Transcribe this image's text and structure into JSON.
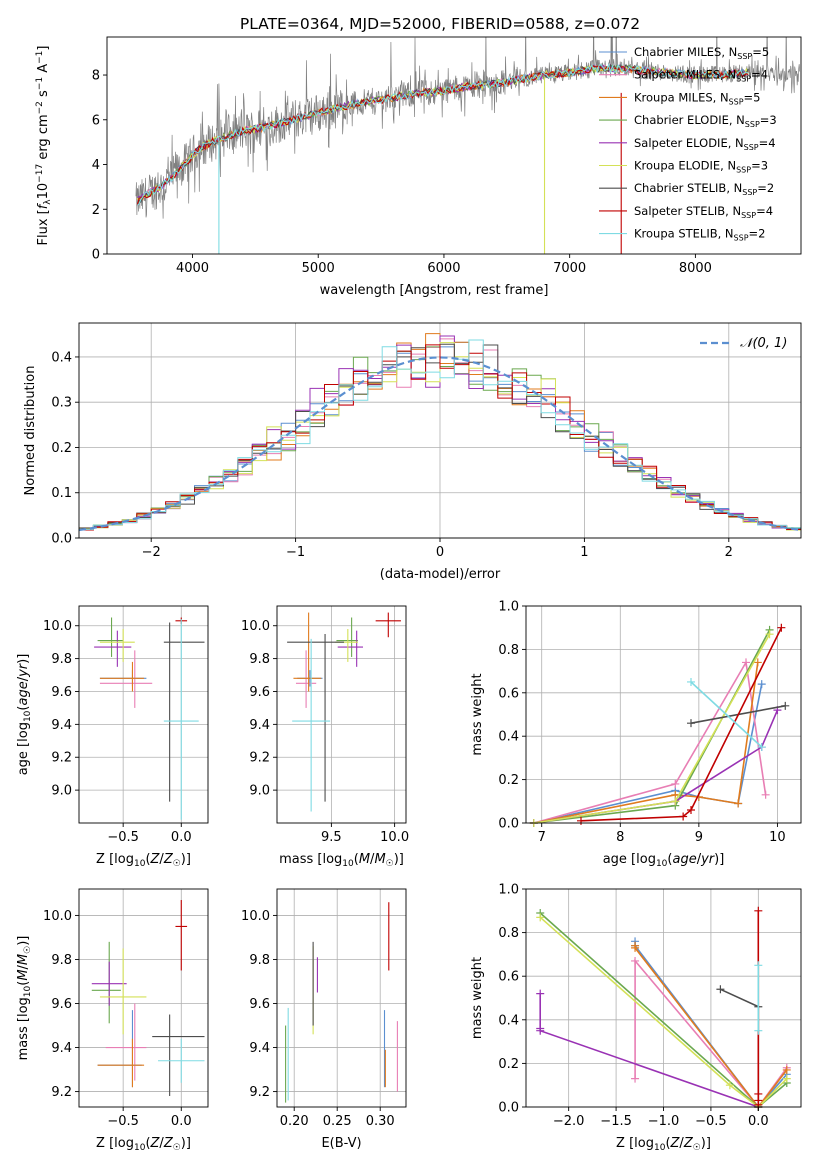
{
  "title": "PLATE=0364, MJD=52000, FIBERID=0588, z=0.072",
  "colors": {
    "chabrier_miles": "#5b8fd0",
    "salpeter_miles": "#e87eb4",
    "kroupa_miles": "#e07b1e",
    "chabrier_elodie": "#6aa84f",
    "salpeter_elodie": "#9932b4",
    "kroupa_elodie": "#d4e157",
    "chabrier_stelib": "#4d4d4d",
    "salpeter_stelib": "#c00000",
    "kroupa_stelib": "#7fdbe3",
    "data": "#808080",
    "normal": "#5b8fd0"
  },
  "chart_data": [
    {
      "id": "spectrum",
      "type": "line",
      "title": "PLATE=0364, MJD=52000, FIBERID=0588, z=0.072",
      "xlabel": "wavelength [Angstrom, rest frame]",
      "ylabel": "Flux [f_λ 10^-17 erg cm^-2 s^-1 A^-1]",
      "xlim": [
        3320,
        8840
      ],
      "ylim": [
        0,
        9.7
      ],
      "xticks": [
        "4000",
        "5000",
        "6000",
        "7000",
        "8000"
      ],
      "yticks": [
        "0",
        "2",
        "4",
        "6",
        "8"
      ],
      "grid": false,
      "legend": "right",
      "continuum": {
        "x": [
          3550,
          3650,
          3750,
          3850,
          3950,
          4050,
          4150,
          4250,
          4400,
          4600,
          4800,
          5000,
          5200,
          5400,
          5600,
          5800,
          6000,
          6200,
          6400,
          6600,
          6800,
          7000,
          7200,
          7400,
          7600,
          7800,
          8000,
          8200,
          8400,
          8600,
          8800
        ],
        "y": [
          2.3,
          2.7,
          3.0,
          3.5,
          4.1,
          4.7,
          5.0,
          5.2,
          5.5,
          5.7,
          6.0,
          6.3,
          6.6,
          6.8,
          7.0,
          7.2,
          7.3,
          7.5,
          7.6,
          7.8,
          8.0,
          8.1,
          8.3,
          8.3,
          8.2,
          8.1,
          8.0,
          8.0,
          8.1,
          8.1,
          8.0
        ]
      },
      "series": [
        {
          "name": "Chabrier MILES, N_SSP=5",
          "label": "Chabrier MILES, N",
          "sub": "SSP",
          "tail": "=5"
        },
        {
          "name": "Salpeter MILES, N_SSP=4",
          "label": "Salpeter MILES, N",
          "sub": "SSP",
          "tail": "=4"
        },
        {
          "name": "Kroupa MILES, N_SSP=5",
          "label": "Kroupa MILES, N",
          "sub": "SSP",
          "tail": "=5"
        },
        {
          "name": "Chabrier ELODIE, N_SSP=3",
          "label": "Chabrier ELODIE, N",
          "sub": "SSP",
          "tail": "=3"
        },
        {
          "name": "Salpeter ELODIE, N_SSP=4",
          "label": "Salpeter ELODIE, N",
          "sub": "SSP",
          "tail": "=4"
        },
        {
          "name": "Kroupa ELODIE, N_SSP=3",
          "label": "Kroupa ELODIE, N",
          "sub": "SSP",
          "tail": "=3"
        },
        {
          "name": "Chabrier STELIB, N_SSP=2",
          "label": "Chabrier STELIB, N",
          "sub": "SSP",
          "tail": "=2"
        },
        {
          "name": "Salpeter STELIB, N_SSP=4",
          "label": "Salpeter STELIB, N",
          "sub": "SSP",
          "tail": "=4"
        },
        {
          "name": "Kroupa STELIB, N_SSP=2",
          "label": "Kroupa STELIB, N",
          "sub": "SSP",
          "tail": "=2"
        }
      ]
    },
    {
      "id": "residuals",
      "type": "line",
      "xlabel": "(data-model)/error",
      "ylabel": "Normed distribution",
      "xlim": [
        -2.5,
        2.5
      ],
      "ylim": [
        0,
        0.475
      ],
      "xticks": [
        "−2",
        "−1",
        "0",
        "1",
        "2"
      ],
      "yticks": [
        "0.0",
        "0.1",
        "0.2",
        "0.3",
        "0.4"
      ],
      "grid": true,
      "legend": "top-right",
      "legend_label": "𝒩(0, 1)",
      "bin_width": 0.1
    },
    {
      "id": "age_vs_Z",
      "type": "scatter",
      "xlabel": "Z [log10(Z/Z☉)]",
      "ylabel": "age [log10(age/yr)]",
      "xlim": [
        -0.88,
        0.23
      ],
      "ylim": [
        8.8,
        10.12
      ],
      "xticks": [
        "−0.5",
        "0.0"
      ],
      "yticks": [
        "9.0",
        "9.2",
        "9.4",
        "9.6",
        "9.8",
        "10.0"
      ],
      "grid": true,
      "points": [
        {
          "model": "chabrier_miles",
          "x": -0.42,
          "y": 9.68,
          "xerr": [
            0.28,
            0.12
          ],
          "yerr": [
            0.05,
            0.05
          ]
        },
        {
          "model": "salpeter_miles",
          "x": -0.4,
          "y": 9.65,
          "xerr": [
            0.3,
            0.15
          ],
          "yerr": [
            0.15,
            0.2
          ]
        },
        {
          "model": "kroupa_miles",
          "x": -0.42,
          "y": 9.68,
          "xerr": [
            0.28,
            0.1
          ],
          "yerr": [
            0.08,
            0.1
          ]
        },
        {
          "model": "chabrier_elodie",
          "x": -0.6,
          "y": 9.91,
          "xerr": [
            0.12,
            0.1
          ],
          "yerr": [
            0.1,
            0.14
          ]
        },
        {
          "model": "salpeter_elodie",
          "x": -0.55,
          "y": 9.87,
          "xerr": [
            0.2,
            0.12
          ],
          "yerr": [
            0.12,
            0.1
          ]
        },
        {
          "model": "kroupa_elodie",
          "x": -0.5,
          "y": 9.9,
          "xerr": [
            0.2,
            0.1
          ],
          "yerr": [
            0.12,
            0.08
          ]
        },
        {
          "model": "chabrier_stelib",
          "x": -0.1,
          "y": 9.9,
          "xerr": [
            0.05,
            0.3
          ],
          "yerr": [
            0.97,
            0.12
          ]
        },
        {
          "model": "salpeter_stelib",
          "x": 0.0,
          "y": 10.03,
          "xerr": [
            0.05,
            0.05
          ],
          "yerr": [
            0.02,
            0.02
          ]
        },
        {
          "model": "kroupa_stelib",
          "x": 0.0,
          "y": 9.42,
          "xerr": [
            0.15,
            0.15
          ],
          "yerr": [
            0.6,
            0.62
          ]
        }
      ]
    },
    {
      "id": "age_vs_mass",
      "type": "scatter",
      "xlabel": "mass [log10(M/M☉)]",
      "ylabel": "",
      "xlim": [
        9.07,
        10.09
      ],
      "ylim": [
        8.8,
        10.12
      ],
      "xticks": [
        "9.5",
        "10.0"
      ],
      "yticks": [
        "9.0",
        "9.2",
        "9.4",
        "9.6",
        "9.8",
        "10.0"
      ],
      "grid": true,
      "points": [
        {
          "model": "chabrier_miles",
          "x": 9.33,
          "y": 9.68,
          "xerr": [
            0.1,
            0.1
          ],
          "yerr": [
            0.05,
            0.05
          ]
        },
        {
          "model": "salpeter_miles",
          "x": 9.3,
          "y": 9.65,
          "xerr": [
            0.08,
            0.08
          ],
          "yerr": [
            0.15,
            0.2
          ]
        },
        {
          "model": "kroupa_miles",
          "x": 9.32,
          "y": 9.68,
          "xerr": [
            0.12,
            0.1
          ],
          "yerr": [
            0.08,
            0.4
          ]
        },
        {
          "model": "chabrier_elodie",
          "x": 9.66,
          "y": 9.91,
          "xerr": [
            0.12,
            0.05
          ],
          "yerr": [
            0.1,
            0.14
          ]
        },
        {
          "model": "salpeter_elodie",
          "x": 9.7,
          "y": 9.87,
          "xerr": [
            0.15,
            0.05
          ],
          "yerr": [
            0.12,
            0.1
          ]
        },
        {
          "model": "kroupa_elodie",
          "x": 9.63,
          "y": 9.9,
          "xerr": [
            0.1,
            0.08
          ],
          "yerr": [
            0.12,
            0.08
          ]
        },
        {
          "model": "chabrier_stelib",
          "x": 9.45,
          "y": 9.9,
          "xerr": [
            0.3,
            0.15
          ],
          "yerr": [
            0.97,
            0.05
          ]
        },
        {
          "model": "salpeter_stelib",
          "x": 9.95,
          "y": 10.03,
          "xerr": [
            0.1,
            0.1
          ],
          "yerr": [
            0.1,
            0.05
          ]
        },
        {
          "model": "kroupa_stelib",
          "x": 9.34,
          "y": 9.42,
          "xerr": [
            0.15,
            0.15
          ],
          "yerr": [
            0.55,
            0.5
          ]
        }
      ]
    },
    {
      "id": "mass_weight_vs_age",
      "type": "line",
      "xlabel": "age [log10(age/yr)]",
      "ylabel": "mass weight",
      "xlim": [
        6.8,
        10.3
      ],
      "ylim": [
        0,
        1
      ],
      "xticks": [
        "7",
        "8",
        "9",
        "10"
      ],
      "yticks": [
        "0.0",
        "0.2",
        "0.4",
        "0.6",
        "0.8",
        "1.0"
      ],
      "grid": true,
      "series": [
        {
          "model": "chabrier_miles",
          "x": [
            6.9,
            8.7,
            9.0,
            9.5,
            9.8
          ],
          "y": [
            0.0,
            0.15,
            0.12,
            0.09,
            0.64
          ]
        },
        {
          "model": "salpeter_miles",
          "x": [
            6.9,
            8.7,
            9.6,
            9.85
          ],
          "y": [
            0.0,
            0.18,
            0.74,
            0.13
          ]
        },
        {
          "model": "kroupa_miles",
          "x": [
            6.9,
            8.7,
            9.0,
            9.5,
            9.75
          ],
          "y": [
            0.0,
            0.13,
            0.12,
            0.09,
            0.74
          ]
        },
        {
          "model": "chabrier_elodie",
          "x": [
            6.9,
            8.7,
            9.9
          ],
          "y": [
            0.0,
            0.08,
            0.89
          ]
        },
        {
          "model": "salpeter_elodie",
          "x": [
            6.9,
            8.7,
            9.8,
            10.0
          ],
          "y": [
            0.0,
            0.1,
            0.35,
            0.52
          ]
        },
        {
          "model": "kroupa_elodie",
          "x": [
            6.9,
            8.7,
            9.9
          ],
          "y": [
            0.0,
            0.1,
            0.87
          ]
        },
        {
          "model": "chabrier_stelib",
          "x": [
            8.9,
            10.1
          ],
          "y": [
            0.46,
            0.54
          ]
        },
        {
          "model": "salpeter_stelib",
          "x": [
            7.5,
            8.8,
            8.9,
            10.05
          ],
          "y": [
            0.01,
            0.03,
            0.06,
            0.9
          ]
        },
        {
          "model": "kroupa_stelib",
          "x": [
            8.9,
            9.8
          ],
          "y": [
            0.65,
            0.35
          ]
        }
      ]
    },
    {
      "id": "mass_vs_Z",
      "type": "scatter",
      "xlabel": "Z [log10(Z/Z☉)]",
      "ylabel": "mass [log10(M/M☉)]",
      "xlim": [
        -0.88,
        0.23
      ],
      "ylim": [
        9.13,
        10.12
      ],
      "xticks": [
        "−0.5",
        "0.0"
      ],
      "yticks": [
        "9.2",
        "9.4",
        "9.6",
        "9.8",
        "10.0"
      ],
      "grid": true,
      "points": [
        {
          "model": "chabrier_miles",
          "x": -0.42,
          "y": 9.32,
          "xerr": [
            0.3,
            0.08
          ],
          "yerr": [
            0.1,
            0.25
          ]
        },
        {
          "model": "salpeter_miles",
          "x": -0.4,
          "y": 9.4,
          "xerr": [
            0.25,
            0.1
          ],
          "yerr": [
            0.15,
            0.2
          ]
        },
        {
          "model": "kroupa_miles",
          "x": -0.42,
          "y": 9.32,
          "xerr": [
            0.3,
            0.1
          ],
          "yerr": [
            0.1,
            0.12
          ]
        },
        {
          "model": "chabrier_elodie",
          "x": -0.62,
          "y": 9.66,
          "xerr": [
            0.15,
            0.1
          ],
          "yerr": [
            0.15,
            0.22
          ]
        },
        {
          "model": "salpeter_elodie",
          "x": -0.62,
          "y": 9.69,
          "xerr": [
            0.15,
            0.15
          ],
          "yerr": [
            0.1,
            0.1
          ]
        },
        {
          "model": "kroupa_elodie",
          "x": -0.5,
          "y": 9.63,
          "xerr": [
            0.2,
            0.2
          ],
          "yerr": [
            0.17,
            0.22
          ]
        },
        {
          "model": "chabrier_stelib",
          "x": -0.1,
          "y": 9.45,
          "xerr": [
            0.15,
            0.3
          ],
          "yerr": [
            0.27,
            0.1
          ]
        },
        {
          "model": "salpeter_stelib",
          "x": 0.0,
          "y": 9.95,
          "xerr": [
            0.05,
            0.05
          ],
          "yerr": [
            0.2,
            0.12
          ]
        },
        {
          "model": "kroupa_stelib",
          "x": 0.0,
          "y": 9.34,
          "xerr": [
            0.2,
            0.2
          ],
          "yerr": [
            0.1,
            0.1
          ]
        }
      ]
    },
    {
      "id": "mass_vs_ebv",
      "type": "scatter",
      "xlabel": "E(B-V)",
      "ylabel": "",
      "xlim": [
        0.18,
        0.33
      ],
      "ylim": [
        9.13,
        10.12
      ],
      "xticks": [
        "0.20",
        "0.25",
        "0.30"
      ],
      "yticks": [
        "9.2",
        "9.4",
        "9.6",
        "9.8",
        "10.0"
      ],
      "grid": true,
      "points": [
        {
          "model": "chabrier_miles",
          "x": 0.305,
          "y": 9.32,
          "yerr": [
            0.1,
            0.25
          ]
        },
        {
          "model": "salpeter_miles",
          "x": 0.32,
          "y": 9.4,
          "yerr": [
            0.2,
            0.12
          ]
        },
        {
          "model": "kroupa_miles",
          "x": 0.306,
          "y": 9.32,
          "yerr": [
            0.1,
            0.07
          ]
        },
        {
          "model": "chabrier_elodie",
          "x": 0.19,
          "y": 9.35,
          "yerr": [
            0.2,
            0.15
          ]
        },
        {
          "model": "salpeter_elodie",
          "x": 0.227,
          "y": 9.73,
          "yerr": [
            0.08,
            0.08
          ]
        },
        {
          "model": "kroupa_elodie",
          "x": 0.222,
          "y": 9.66,
          "yerr": [
            0.2,
            0.2
          ]
        },
        {
          "model": "chabrier_stelib",
          "x": 0.222,
          "y": 9.7,
          "yerr": [
            0.2,
            0.18
          ]
        },
        {
          "model": "salpeter_stelib",
          "x": 0.31,
          "y": 9.91,
          "yerr": [
            0.16,
            0.15
          ]
        },
        {
          "model": "kroupa_stelib",
          "x": 0.193,
          "y": 9.38,
          "yerr": [
            0.22,
            0.2
          ]
        }
      ]
    },
    {
      "id": "mass_weight_vs_Z",
      "type": "line",
      "xlabel": "Z [log10(Z/Z☉)]",
      "ylabel": "mass weight",
      "xlim": [
        -2.45,
        0.45
      ],
      "ylim": [
        0,
        1
      ],
      "xticks": [
        "−2.0",
        "−1.5",
        "−1.0",
        "−0.5",
        "0.0"
      ],
      "yticks": [
        "0.0",
        "0.2",
        "0.4",
        "0.6",
        "0.8",
        "1.0"
      ],
      "grid": true,
      "series": [
        {
          "model": "chabrier_miles",
          "x": [
            -1.3,
            -1.3,
            0.0,
            0.3
          ],
          "y": [
            0.76,
            0.74,
            0.0,
            0.15
          ]
        },
        {
          "model": "salpeter_miles",
          "x": [
            -1.3,
            -1.3,
            0.0,
            0.3
          ],
          "y": [
            0.13,
            0.67,
            0.0,
            0.18
          ]
        },
        {
          "model": "kroupa_miles",
          "x": [
            -1.3,
            -1.3,
            0.0,
            0.3
          ],
          "y": [
            0.74,
            0.73,
            0.0,
            0.17
          ]
        },
        {
          "model": "chabrier_elodie",
          "x": [
            -2.3,
            0.0,
            0.3
          ],
          "y": [
            0.89,
            0.0,
            0.11
          ]
        },
        {
          "model": "salpeter_elodie",
          "x": [
            -2.3,
            -2.3,
            -2.3,
            0.0
          ],
          "y": [
            0.52,
            0.36,
            0.35,
            0.0
          ]
        },
        {
          "model": "kroupa_elodie",
          "x": [
            -2.3,
            -0.3,
            0.0,
            0.3
          ],
          "y": [
            0.87,
            0.1,
            0.0,
            0.13
          ]
        },
        {
          "model": "chabrier_stelib",
          "x": [
            -0.4,
            0.0,
            0.0
          ],
          "y": [
            0.54,
            0.46,
            0.0
          ]
        },
        {
          "model": "salpeter_stelib",
          "x": [
            0.0,
            0.0,
            0.0,
            0.0
          ],
          "y": [
            0.9,
            0.06,
            0.03,
            0.01
          ]
        },
        {
          "model": "kroupa_stelib",
          "x": [
            0.0,
            0.0
          ],
          "y": [
            0.35,
            0.65
          ]
        }
      ]
    }
  ]
}
